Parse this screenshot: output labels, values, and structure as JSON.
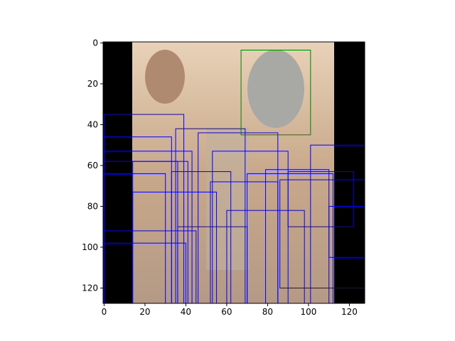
{
  "chart_data": {
    "type": "image",
    "xlim": [
      -0.5,
      127.5
    ],
    "ylim": [
      127.5,
      -0.5
    ],
    "xticks": [
      0,
      20,
      40,
      60,
      80,
      100,
      120
    ],
    "yticks": [
      0,
      20,
      40,
      60,
      80,
      100,
      120
    ],
    "box_color": "#0000ff",
    "boxes": [
      [
        0,
        35,
        39,
        127.5
      ],
      [
        0,
        46,
        33,
        127.5
      ],
      [
        0,
        53,
        43,
        127.5
      ],
      [
        0,
        58,
        36,
        127.5
      ],
      [
        35,
        42,
        69,
        127.5
      ],
      [
        46,
        44,
        85,
        127.5
      ],
      [
        53,
        53,
        90,
        127.5
      ],
      [
        14,
        58,
        41,
        127.5
      ],
      [
        101,
        50,
        127.5,
        127.5
      ],
      [
        79,
        62,
        110,
        127.5
      ],
      [
        90,
        63,
        122,
        90
      ],
      [
        70,
        64,
        112,
        127.5
      ],
      [
        33,
        63,
        62,
        127.5
      ],
      [
        14,
        73,
        55,
        127.5
      ],
      [
        0,
        64,
        30,
        127.5
      ],
      [
        110,
        80,
        127.5,
        105
      ],
      [
        86,
        67,
        127.5,
        120
      ],
      [
        60,
        82,
        98,
        127.5
      ],
      [
        36,
        90,
        70,
        127.5
      ],
      [
        0,
        92,
        45,
        127.5
      ],
      [
        0,
        98,
        40,
        127.5
      ],
      [
        52,
        68,
        85,
        127.5
      ]
    ],
    "highlight_color": "#008000",
    "highlight_box": [
      67,
      3.5,
      101,
      45
    ]
  }
}
